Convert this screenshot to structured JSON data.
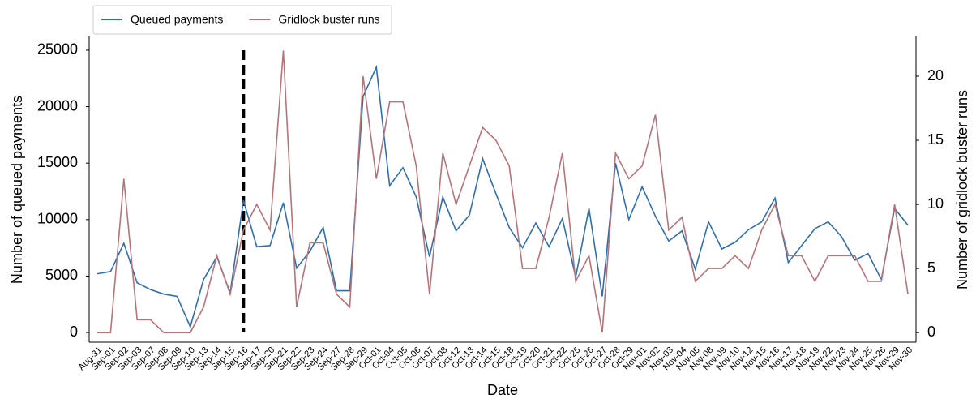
{
  "chart_data": {
    "type": "line",
    "xlabel": "Date",
    "ylabel": "Number of queued payments",
    "y2label": "Number of gridlock buster runs",
    "categories": [
      "Aug-31",
      "Sep-01",
      "Sep-02",
      "Sep-03",
      "Sep-07",
      "Sep-08",
      "Sep-09",
      "Sep-10",
      "Sep-13",
      "Sep-14",
      "Sep-15",
      "Sep-16",
      "Sep-17",
      "Sep-20",
      "Sep-21",
      "Sep-22",
      "Sep-23",
      "Sep-24",
      "Sep-27",
      "Sep-28",
      "Sep-29",
      "Oct-01",
      "Oct-04",
      "Oct-05",
      "Oct-06",
      "Oct-07",
      "Oct-08",
      "Oct-12",
      "Oct-13",
      "Oct-14",
      "Oct-15",
      "Oct-18",
      "Oct-19",
      "Oct-20",
      "Oct-21",
      "Oct-22",
      "Oct-25",
      "Oct-26",
      "Oct-27",
      "Oct-28",
      "Oct-29",
      "Nov-01",
      "Nov-02",
      "Nov-03",
      "Nov-04",
      "Nov-05",
      "Nov-08",
      "Nov-09",
      "Nov-10",
      "Nov-12",
      "Nov-15",
      "Nov-16",
      "Nov-17",
      "Nov-18",
      "Nov-19",
      "Nov-22",
      "Nov-23",
      "Nov-24",
      "Nov-25",
      "Nov-26",
      "Nov-29",
      "Nov-30"
    ],
    "series": [
      {
        "name": "Queued payments",
        "color": "#2e6fad",
        "axis": "y",
        "values": [
          5200,
          5400,
          7900,
          4400,
          3800,
          3400,
          3200,
          500,
          4700,
          6700,
          3500,
          11700,
          7600,
          7700,
          11500,
          5700,
          7200,
          9300,
          3700,
          3700,
          20900,
          23500,
          13000,
          14600,
          12000,
          6700,
          12000,
          9000,
          10400,
          15400,
          12300,
          9300,
          7500,
          9700,
          7600,
          10100,
          4900,
          11000,
          3200,
          15000,
          10000,
          12900,
          10300,
          8100,
          9000,
          5600,
          9800,
          7400,
          8000,
          9100,
          9800,
          11900,
          6200,
          7700,
          9200,
          9800,
          8500,
          6400,
          7000,
          4700,
          11000,
          9500
        ]
      },
      {
        "name": "Gridlock buster runs",
        "color": "#b87378",
        "axis": "y2",
        "values": [
          0,
          0,
          12,
          1,
          1,
          0,
          0,
          0,
          2,
          6,
          3,
          8,
          10,
          8,
          22,
          2,
          7,
          7,
          3,
          2,
          20,
          12,
          18,
          18,
          13,
          3,
          14,
          10,
          13,
          16,
          15,
          13,
          5,
          5,
          9,
          14,
          4,
          6,
          0,
          14,
          12,
          13,
          17,
          8,
          9,
          4,
          5,
          5,
          6,
          5,
          8,
          10,
          6,
          6,
          4,
          6,
          6,
          6,
          4,
          4,
          10,
          3
        ]
      }
    ],
    "ylim": [
      -860,
      26220
    ],
    "yticks": [
      0,
      5000,
      10000,
      15000,
      20000,
      25000
    ],
    "y2lim": [
      -0.75,
      23.1
    ],
    "y2ticks": [
      0,
      5,
      10,
      15,
      20
    ],
    "vline": {
      "x": "Sep-16",
      "color": "#000000",
      "style": "dashed"
    },
    "legend": "upper left",
    "grid": false
  }
}
